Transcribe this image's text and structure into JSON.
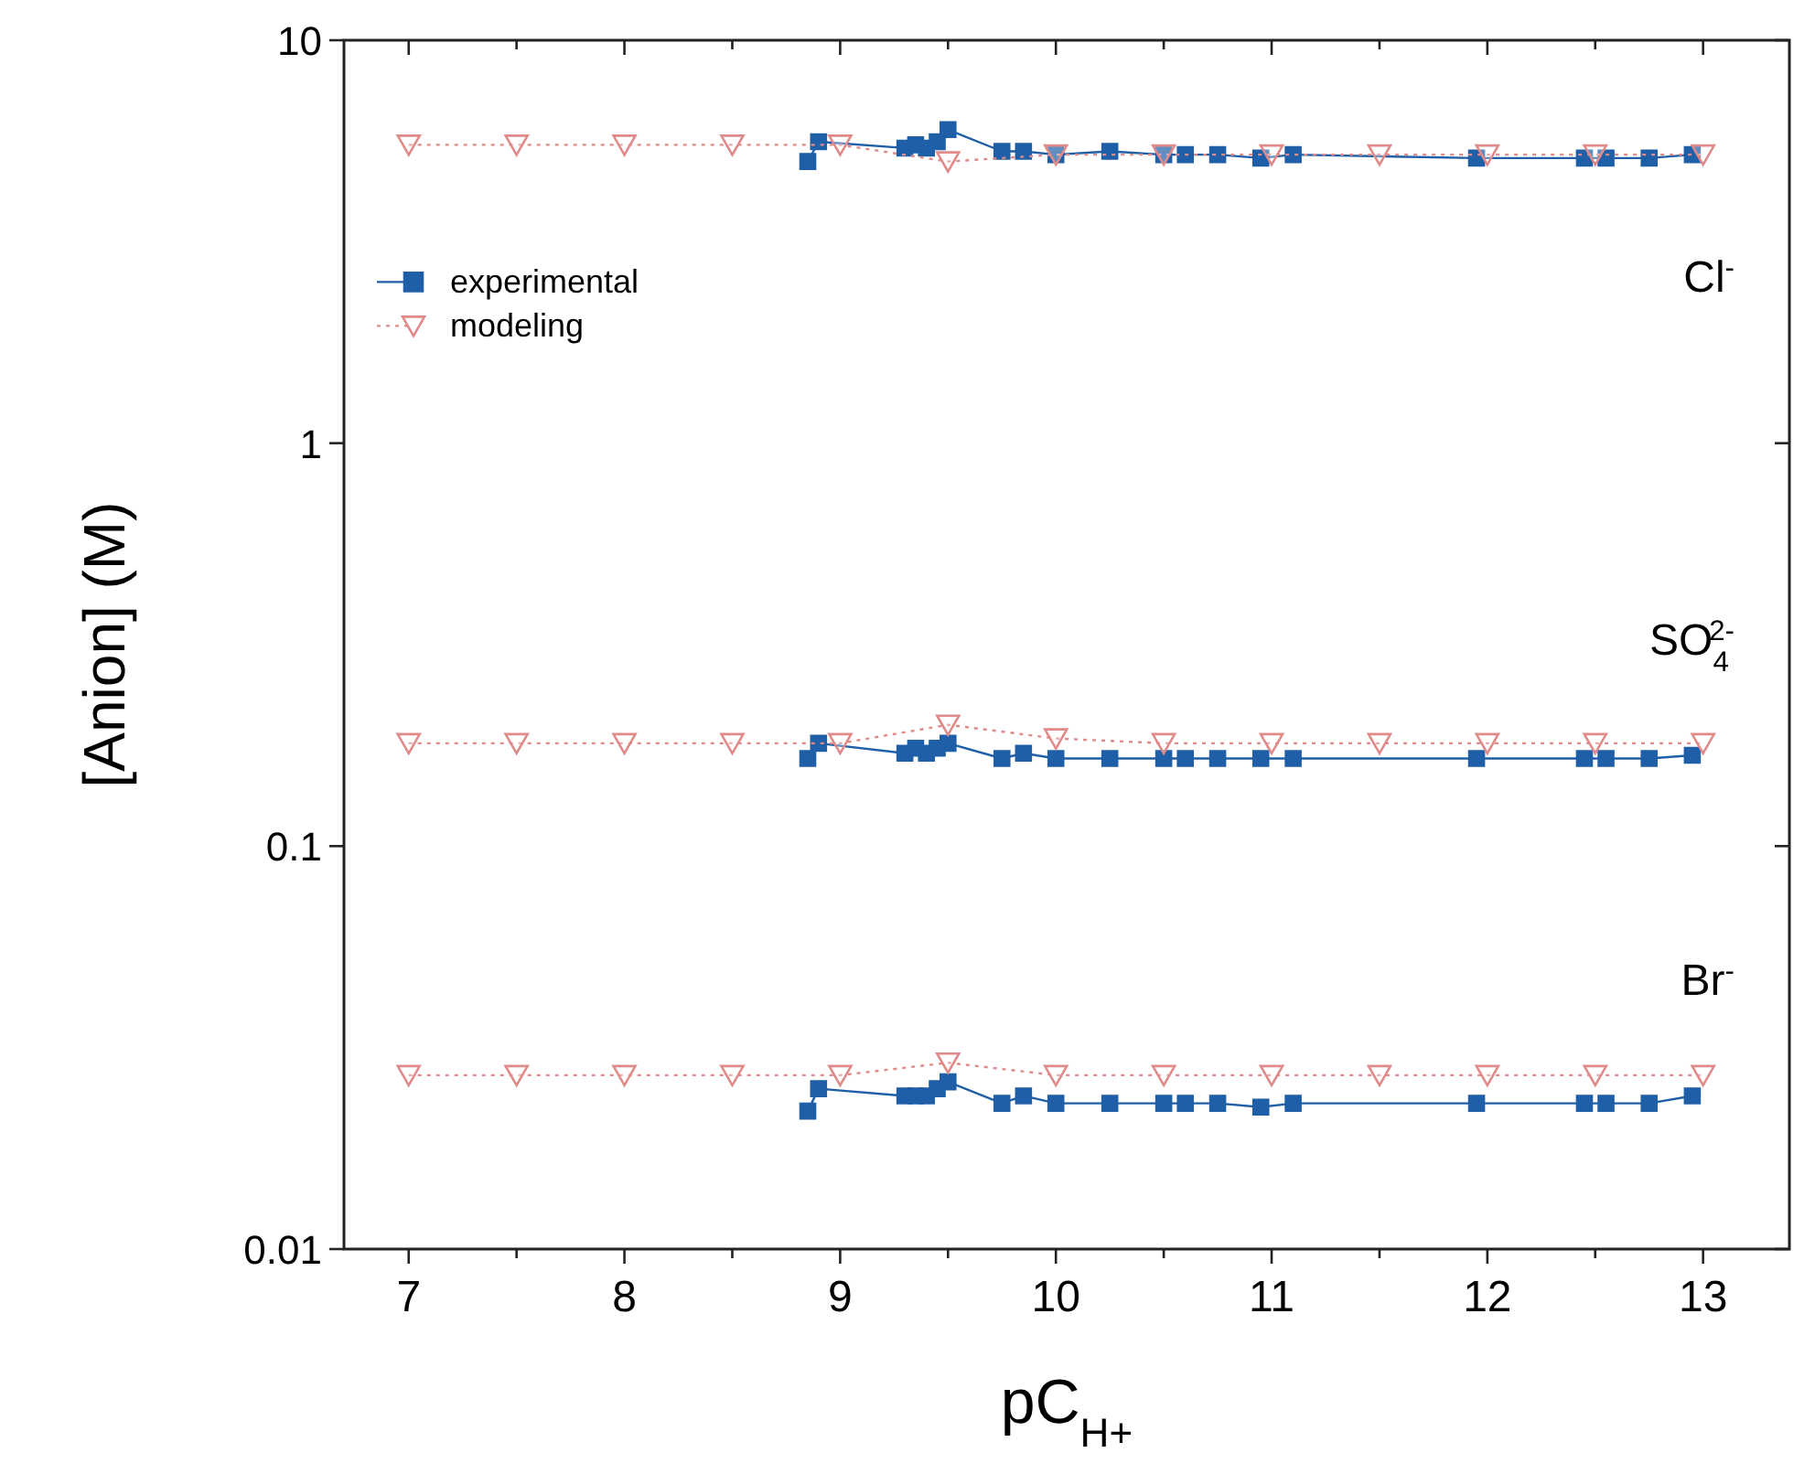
{
  "chart_data": {
    "type": "line",
    "xlabel": "pC$_{H+}$",
    "ylabel": "[Anion] (M)",
    "log": "y",
    "xlim": [
      6.7,
      13.4
    ],
    "ylim": [
      0.01,
      10
    ],
    "xticks": [
      7,
      {
        "value": 7.5,
        "label": null
      },
      8,
      {
        "value": 8.5,
        "label": null
      },
      9,
      {
        "value": 9.5,
        "label": null
      },
      10,
      {
        "value": 10.5,
        "label": null
      },
      11,
      {
        "value": 11.5,
        "label": null
      },
      12,
      {
        "value": 12.5,
        "label": null
      },
      13
    ],
    "yticks": [
      0.01,
      0.1,
      1,
      10
    ],
    "legend": "left",
    "grid": false,
    "series": [
      {
        "name": "experimental",
        "color": "#1f5fa8",
        "marker": "square",
        "line_style": "solid",
        "x": [
          8.85,
          8.9,
          9.3,
          9.35,
          9.4,
          9.45,
          9.5,
          9.75,
          9.85,
          10.0,
          10.25,
          10.5,
          10.6,
          10.75,
          10.95,
          11.1,
          11.95,
          12.45,
          12.55,
          12.75,
          12.95
        ],
        "values": [
          5.0,
          5.6,
          5.4,
          5.5,
          5.4,
          5.6,
          6.0,
          5.3,
          5.3,
          5.2,
          5.3,
          5.2,
          5.2,
          5.2,
          5.1,
          5.2,
          5.1,
          5.1,
          5.1,
          5.1,
          5.2
        ]
      },
      {
        "name": "modeling",
        "color": "#e08a8a",
        "marker": "triangle",
        "line_style": "dotted",
        "x": [
          7,
          7.5,
          8,
          8.5,
          9,
          9.5,
          10,
          10.5,
          11,
          11.5,
          12,
          12.5,
          13
        ],
        "values": [
          5.5,
          5.5,
          5.5,
          5.5,
          5.5,
          5.0,
          5.2,
          5.2,
          5.2,
          5.2,
          5.2,
          5.2,
          5.2
        ]
      },
      {
        "color": "#1f5fa8",
        "marker": "square",
        "line_style": "solid",
        "x": [
          8.85,
          8.9,
          9.3,
          9.35,
          9.4,
          9.45,
          9.5,
          9.75,
          9.85,
          10.0,
          10.25,
          10.5,
          10.6,
          10.75,
          10.95,
          11.1,
          11.95,
          12.45,
          12.55,
          12.75,
          12.95
        ],
        "values": [
          0.165,
          0.18,
          0.17,
          0.175,
          0.17,
          0.175,
          0.18,
          0.165,
          0.17,
          0.165,
          0.165,
          0.165,
          0.165,
          0.165,
          0.165,
          0.165,
          0.165,
          0.165,
          0.165,
          0.165,
          0.168
        ]
      },
      {
        "color": "#e08a8a",
        "marker": "triangle",
        "line_style": "dotted",
        "x": [
          7,
          7.5,
          8,
          8.5,
          9,
          9.5,
          10,
          10.5,
          11,
          11.5,
          12,
          12.5,
          13
        ],
        "values": [
          0.18,
          0.18,
          0.18,
          0.18,
          0.18,
          0.2,
          0.185,
          0.18,
          0.18,
          0.18,
          0.18,
          0.18,
          0.18
        ]
      },
      {
        "color": "#1f5fa8",
        "marker": "square",
        "line_style": "solid",
        "x": [
          8.85,
          8.9,
          9.3,
          9.35,
          9.4,
          9.45,
          9.5,
          9.75,
          9.85,
          10.0,
          10.25,
          10.5,
          10.6,
          10.75,
          10.95,
          11.1,
          11.95,
          12.45,
          12.55,
          12.75,
          12.95
        ],
        "values": [
          0.022,
          0.025,
          0.024,
          0.024,
          0.024,
          0.025,
          0.026,
          0.023,
          0.024,
          0.023,
          0.023,
          0.023,
          0.023,
          0.023,
          0.0225,
          0.023,
          0.023,
          0.023,
          0.023,
          0.023,
          0.024
        ]
      },
      {
        "color": "#e08a8a",
        "marker": "triangle",
        "line_style": "dotted",
        "x": [
          7,
          7.5,
          8,
          8.5,
          9,
          9.5,
          10,
          10.5,
          11,
          11.5,
          12,
          12.5,
          13
        ],
        "values": [
          0.027,
          0.027,
          0.027,
          0.027,
          0.027,
          0.029,
          0.027,
          0.027,
          0.027,
          0.027,
          0.027,
          0.027,
          0.027
        ]
      }
    ],
    "annotations": [
      "Cl$^{-}$",
      "SO$_{4}$$^{2-}$",
      "Br$^{-}$"
    ]
  }
}
